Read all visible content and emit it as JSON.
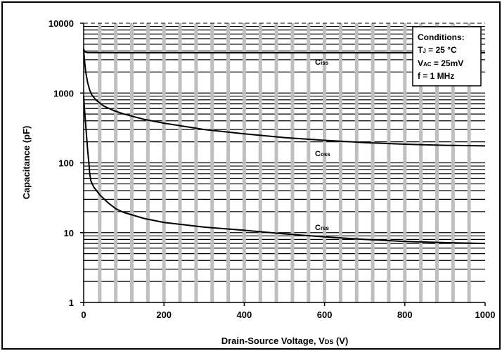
{
  "chart_data": {
    "type": "line",
    "title": "",
    "xlabel": {
      "main": "Drain-Source Voltage, V",
      "sub": "DS",
      "suffix": " (V)"
    },
    "ylabel": "Capacitance (pF)",
    "xlim": [
      0,
      1000
    ],
    "ylim": [
      1,
      10000
    ],
    "yscale": "log",
    "x_ticks": [
      "0",
      "200",
      "400",
      "600",
      "800",
      "1000"
    ],
    "y_ticks": [
      "1",
      "10",
      "100",
      "1000",
      "10000"
    ],
    "grid": true,
    "legend_position": "top-right",
    "conditions": {
      "heading": "Conditions:",
      "tj": {
        "main": "T",
        "sub": "J",
        "rest": " = 25 °C"
      },
      "vac": {
        "main": "V",
        "sub": "AC",
        "rest": " = 25mV"
      },
      "freq": "f = 1 MHz"
    },
    "series": [
      {
        "name": "Ciss",
        "label_main": "C",
        "label_sub": "iss",
        "x": [
          0,
          2,
          5,
          10,
          20,
          50,
          100,
          200,
          400,
          600,
          800,
          1000
        ],
        "y": [
          4300,
          3950,
          3850,
          3800,
          3790,
          3780,
          3775,
          3770,
          3770,
          3770,
          3770,
          3770
        ]
      },
      {
        "name": "Coss",
        "label_main": "C",
        "label_sub": "oss",
        "x": [
          0,
          2,
          5,
          10,
          15,
          20,
          30,
          50,
          75,
          100,
          150,
          200,
          300,
          400,
          500,
          600,
          700,
          800,
          900,
          1000
        ],
        "y": [
          4300,
          3000,
          2000,
          1400,
          1100,
          950,
          800,
          650,
          560,
          500,
          420,
          370,
          300,
          260,
          230,
          210,
          195,
          185,
          178,
          175
        ]
      },
      {
        "name": "Crss",
        "label_main": "C",
        "label_sub": "rss",
        "x": [
          0,
          3,
          6,
          10,
          13,
          15,
          18,
          25,
          40,
          60,
          80,
          100,
          150,
          200,
          300,
          400,
          500,
          600,
          700,
          800,
          900,
          1000
        ],
        "y": [
          900,
          500,
          300,
          150,
          100,
          70,
          55,
          45,
          35,
          27,
          22,
          19.5,
          16,
          14,
          12,
          10.8,
          9.6,
          8.7,
          8,
          7.5,
          7.2,
          7
        ]
      }
    ]
  }
}
